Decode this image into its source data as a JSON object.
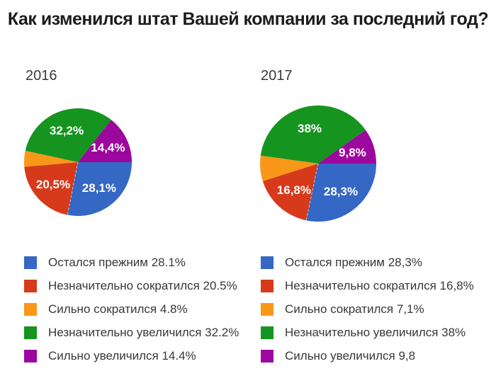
{
  "title": "Как изменился штат Вашей компании за последний год?",
  "palette": [
    "#3567C4",
    "#D63A1B",
    "#F99718",
    "#169420",
    "#9C079E"
  ],
  "chart_data": [
    {
      "type": "pie",
      "year": "2016",
      "categories": [
        "Остался прежним",
        "Незначительно сократился",
        "Сильно сократился",
        "Незначительно увеличился",
        "Сильно увеличился"
      ],
      "values": [
        28.1,
        20.5,
        4.8,
        32.2,
        14.4
      ],
      "slice_labels": [
        "28,1%",
        "20,5%",
        "",
        "32,2%",
        "14,4%"
      ],
      "legend_entries": [
        "Остался прежним 28.1%",
        "Незначительно сократился 20.5%",
        "Сильно сократился 4.8%",
        "Незначительно увеличился 32.2%",
        "Сильно увеличился 14.4%"
      ],
      "start_angle": "3-oclock",
      "direction": "clockwise",
      "legend_position": "bottom"
    },
    {
      "type": "pie",
      "year": "2017",
      "categories": [
        "Остался прежним",
        "Незначительно сократился",
        "Сильно сократился",
        "Незначительно увеличился",
        "Сильно увеличился"
      ],
      "values": [
        28.3,
        16.8,
        7.1,
        38,
        9.8
      ],
      "slice_labels": [
        "28,3%",
        "16,8%",
        "",
        "38%",
        "9,8%"
      ],
      "legend_entries": [
        "Остался прежним 28,3%",
        "Незначительно сократился 16,8%",
        "Сильно сократился 7,1%",
        "Незначительно увеличился 38%",
        "Сильно увеличился 9,8"
      ],
      "start_angle": "3-oclock",
      "direction": "clockwise",
      "legend_position": "bottom"
    }
  ]
}
